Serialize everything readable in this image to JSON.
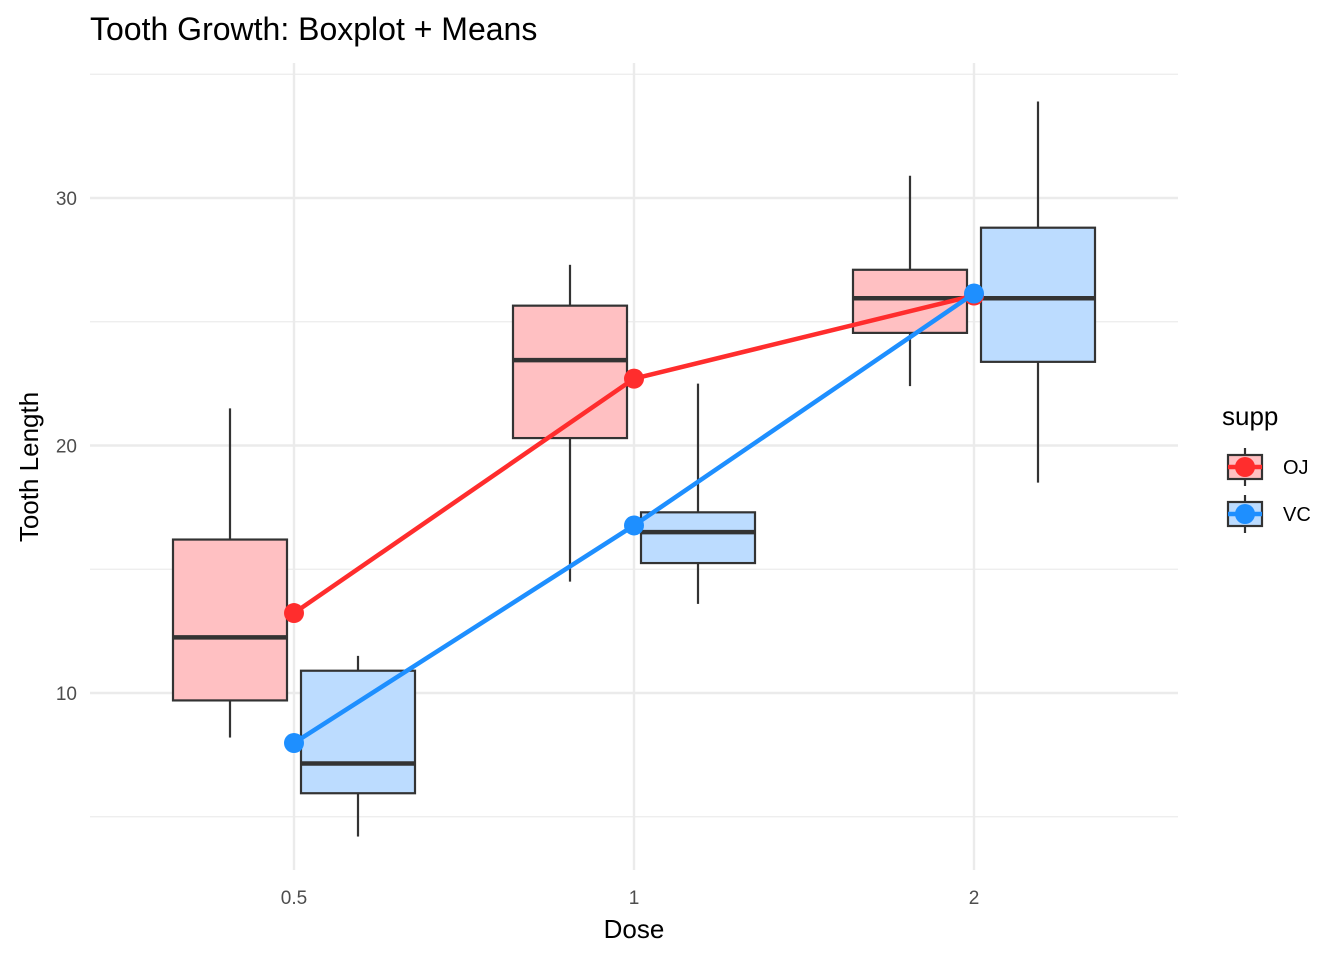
{
  "chart_data": {
    "type": "box",
    "title": "Tooth Growth: Boxplot + Means",
    "xlabel": "Dose",
    "ylabel": "Tooth Length",
    "categories": [
      "0.5",
      "1",
      "2"
    ],
    "ylim": [
      3.2,
      35.5
    ],
    "y_ticks": [
      10,
      20,
      30
    ],
    "grid": true,
    "legend": {
      "title": "supp",
      "position": "right"
    },
    "series": [
      {
        "name": "OJ",
        "fill": "#ffc0c2",
        "line_color": "#ff2d2d",
        "boxes": [
          {
            "lower_whisker": 8.2,
            "q1": 9.7,
            "median": 12.25,
            "q3": 16.2,
            "upper_whisker": 21.5
          },
          {
            "lower_whisker": 14.5,
            "q1": 20.3,
            "median": 23.45,
            "q3": 25.65,
            "upper_whisker": 27.3
          },
          {
            "lower_whisker": 22.4,
            "q1": 24.55,
            "median": 25.95,
            "q3": 27.1,
            "upper_whisker": 30.9
          }
        ],
        "means": [
          13.23,
          22.7,
          26.06
        ]
      },
      {
        "name": "VC",
        "fill": "#bcdcff",
        "line_color": "#1e8fff",
        "boxes": [
          {
            "lower_whisker": 4.2,
            "q1": 5.95,
            "median": 7.15,
            "q3": 10.9,
            "upper_whisker": 11.5
          },
          {
            "lower_whisker": 13.6,
            "q1": 15.25,
            "median": 16.5,
            "q3": 17.3,
            "upper_whisker": 22.5
          },
          {
            "lower_whisker": 18.5,
            "q1": 23.38,
            "median": 25.95,
            "q3": 28.8,
            "upper_whisker": 33.9
          }
        ],
        "means": [
          7.98,
          16.77,
          26.14
        ]
      }
    ]
  }
}
